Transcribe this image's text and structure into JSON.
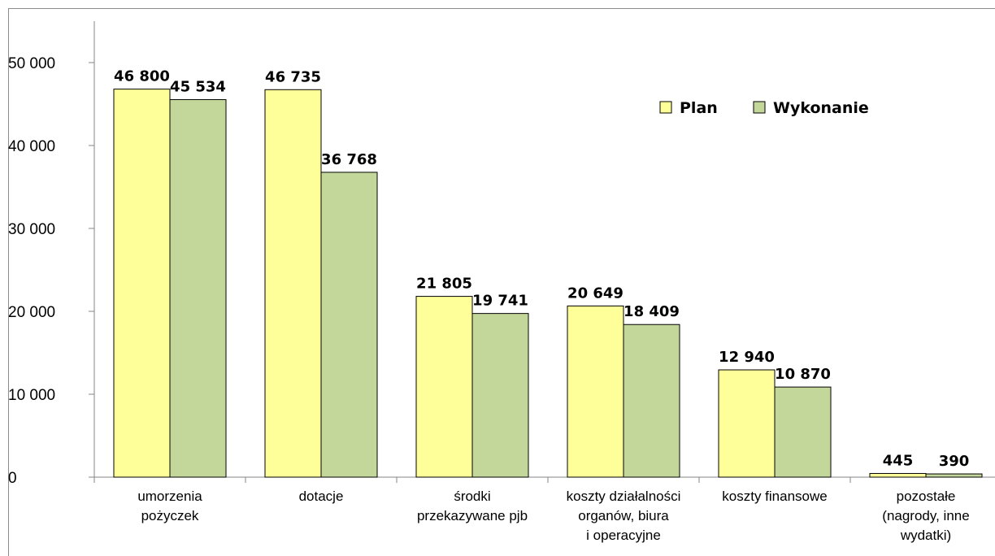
{
  "chart_data": {
    "type": "bar",
    "categories": [
      [
        "umorzenia",
        "pożyczek"
      ],
      [
        "dotacje"
      ],
      [
        "środki",
        "przekazywane pjb"
      ],
      [
        "koszty działalności",
        "organów, biura",
        "i operacyjne"
      ],
      [
        "koszty finansowe"
      ],
      [
        "pozostałe",
        "(nagrody, inne",
        "wydatki)"
      ]
    ],
    "series": [
      {
        "name": "Plan",
        "color": "#FFFF99",
        "values": [
          46800,
          46735,
          21805,
          20649,
          12940,
          445
        ]
      },
      {
        "name": "Wykonanie",
        "color": "#C4D79B",
        "values": [
          45534,
          36768,
          19741,
          18409,
          10870,
          390
        ]
      }
    ],
    "data_labels": [
      [
        "46 800",
        "46 735",
        "21 805",
        "20 649",
        "12 940",
        "445"
      ],
      [
        "45 534",
        "36 768",
        "19 741",
        "18 409",
        "10 870",
        "390"
      ]
    ],
    "yticks": [
      0,
      10000,
      20000,
      30000,
      40000,
      50000
    ],
    "ytick_labels": [
      "0",
      "10 000",
      "20 000",
      "30 000",
      "40 000",
      "50 000"
    ],
    "ylim": [
      0,
      55000
    ],
    "legend_position": "top-right",
    "grid": false,
    "title": "",
    "xlabel": "",
    "ylabel": ""
  }
}
